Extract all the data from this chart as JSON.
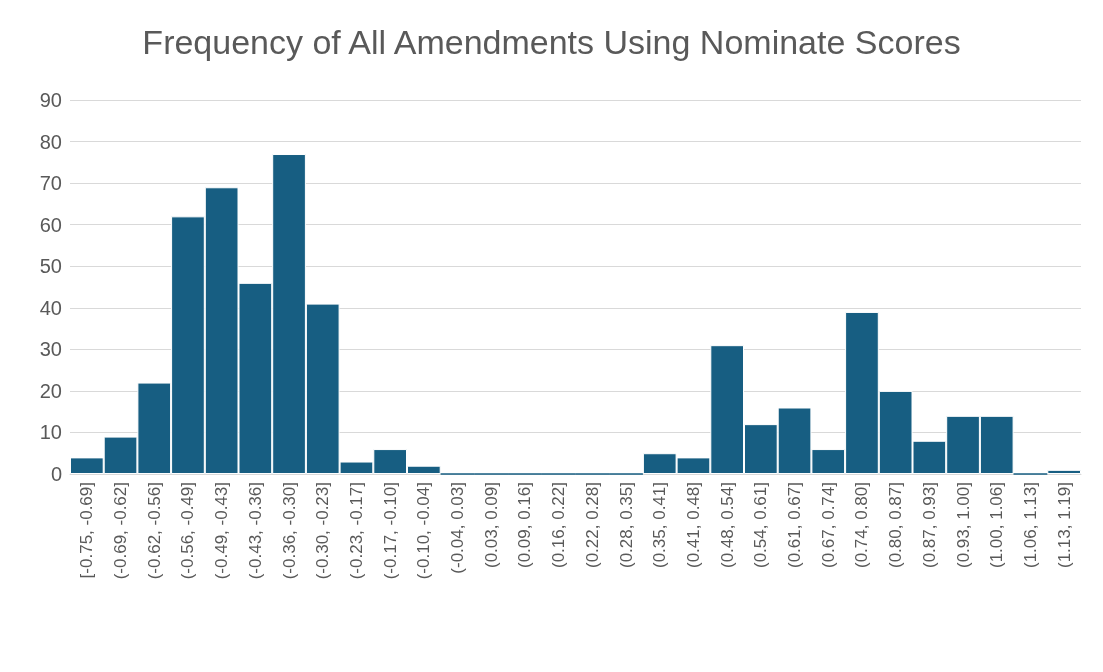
{
  "chart_data": {
    "type": "bar",
    "title": "Frequency of All Amendments Using Nominate Scores",
    "categories": [
      "[-0.75, -0.69]",
      "(-0.69, -0.62]",
      "(-0.62, -0.56]",
      "(-0.56, -0.49]",
      "(-0.49, -0.43]",
      "(-0.43, -0.36]",
      "(-0.36, -0.30]",
      "(-0.30, -0.23]",
      "(-0.23, -0.17]",
      "(-0.17, -0.10]",
      "(-0.10, -0.04]",
      "(-0.04, 0.03]",
      "(0.03, 0.09]",
      "(0.09, 0.16]",
      "(0.16, 0.22]",
      "(0.22, 0.28]",
      "(0.28, 0.35]",
      "(0.35, 0.41]",
      "(0.41, 0.48]",
      "(0.48, 0.54]",
      "(0.54, 0.61]",
      "(0.61, 0.67]",
      "(0.67, 0.74]",
      "(0.74, 0.80]",
      "(0.80, 0.87]",
      "(0.87, 0.93]",
      "(0.93, 1.00]",
      "(1.00, 1.06]",
      "(1.06, 1.13]",
      "(1.13, 1.19]"
    ],
    "values": [
      4,
      9,
      22,
      62,
      69,
      46,
      77,
      41,
      3,
      6,
      2,
      0,
      0,
      0,
      0,
      0,
      0,
      5,
      4,
      31,
      12,
      16,
      6,
      39,
      20,
      8,
      14,
      14,
      0,
      1
    ],
    "color": "#175e82",
    "ylim": [
      0,
      90
    ],
    "yticks": [
      0,
      10,
      20,
      30,
      40,
      50,
      60,
      70,
      80,
      90
    ],
    "grid": "y"
  }
}
